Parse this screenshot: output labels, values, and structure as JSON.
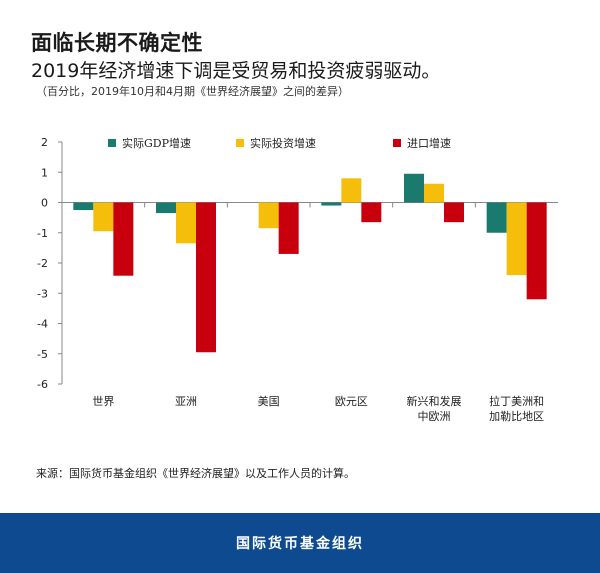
{
  "header": {
    "title": "面临长期不确定性",
    "subtitle": "2019年经济增速下调是受贸易和投资疲弱驱动。",
    "note": "（百分比，2019年10月和4月期《世界经济展望》之间的差异）"
  },
  "chart_data": {
    "type": "bar",
    "categories": [
      "世界",
      "亚洲",
      "美国",
      "欧元区",
      "新兴和发展\n中欧洲",
      "拉丁美洲和\n加勒比地区"
    ],
    "series": [
      {
        "name": "实际GDP增速",
        "color": "#1b7a6e",
        "values": [
          -0.25,
          -0.35,
          0.0,
          -0.1,
          0.95,
          -1.0
        ]
      },
      {
        "name": "实际投资增速",
        "color": "#f5be0b",
        "values": [
          -0.95,
          -1.35,
          -0.85,
          0.8,
          0.62,
          -2.4
        ]
      },
      {
        "name": "进口增速",
        "color": "#c8000d",
        "values": [
          -2.42,
          -4.95,
          -1.7,
          -0.65,
          -0.65,
          -3.2
        ]
      }
    ],
    "ylim": [
      -6,
      2
    ],
    "yticks": [
      2,
      1,
      0,
      -1,
      -2,
      -3,
      -4,
      -5,
      -6
    ],
    "legend_position": "top"
  },
  "source": "来源：国际货币基金组织《世界经济展望》以及工作人员的计算。",
  "footer": {
    "label": "国际货币基金组织",
    "color": "#0d4a8f"
  }
}
